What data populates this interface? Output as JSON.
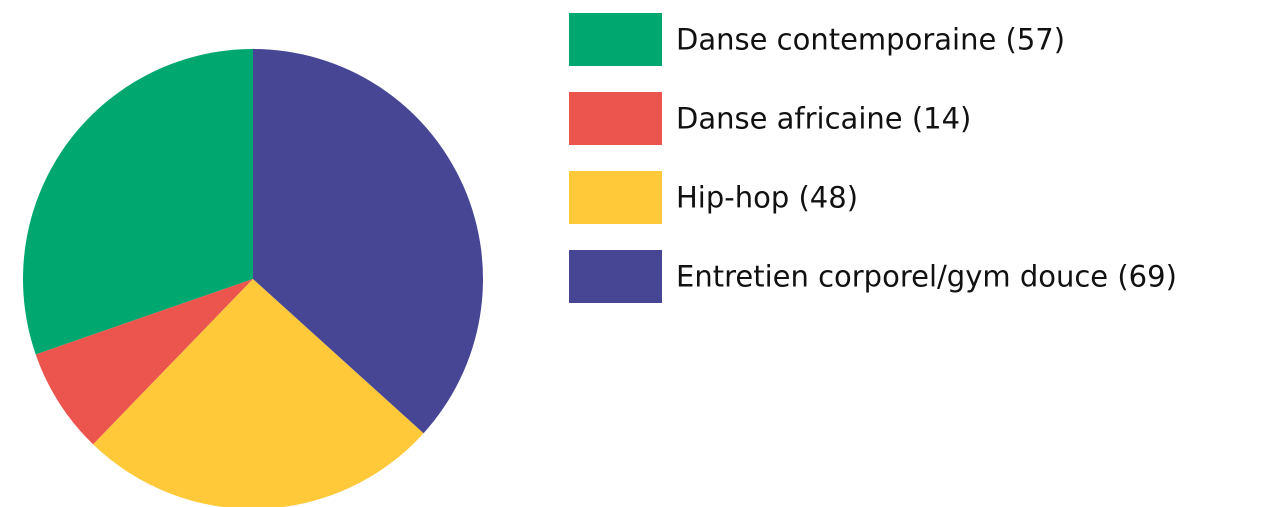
{
  "chart_data": {
    "type": "pie",
    "title": "",
    "start": "12 o'clock",
    "direction": "counterclockwise",
    "legend_position": "right",
    "categories": [
      "Danse contemporaine",
      "Danse africaine",
      "Hip-hop",
      "Entretien corporel/gym douce"
    ],
    "values": [
      57,
      14,
      48,
      69
    ],
    "legend_labels": [
      "Danse contemporaine (57)",
      "Danse africaine (14)",
      "Hip-hop (48)",
      "Entretien corporel/gym douce (69)"
    ],
    "colors": [
      "#00a870",
      "#eb554d",
      "#ffc93a",
      "#464694"
    ]
  }
}
